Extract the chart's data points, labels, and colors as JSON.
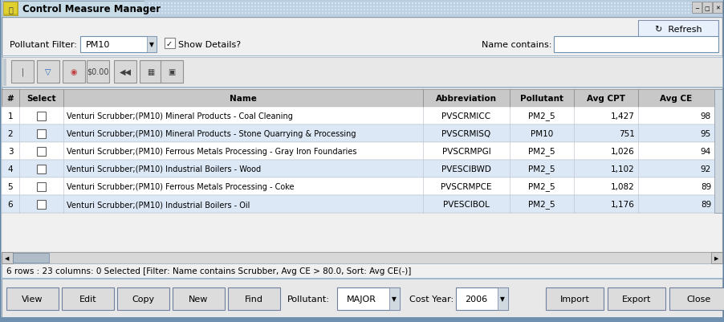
{
  "title": "Control Measure Manager",
  "titlebar_bg": "#d6e4f5",
  "titlebar_stripe": "#a8c4e0",
  "main_bg": "#f0f0f0",
  "panel_bg": "#e8e8e8",
  "toolbar_bg": "#e8e8e8",
  "table_header_bg": "#c8c8c8",
  "row_bg_odd": "#ffffff",
  "row_bg_even": "#dce8f5",
  "row_text": "#000000",
  "border_color": "#7090b0",
  "pollutant_filter_label": "Pollutant Filter:",
  "pollutant_filter_value": "PM10",
  "show_details_label": "Show Details?",
  "name_contains_label": "Name contains:",
  "status_bar": "6 rows : 23 columns: 0 Selected [Filter: Name contains Scrubber, Avg CE > 80.0, Sort: Avg CE(-)]",
  "pollutant_bottom_label": "Pollutant:",
  "pollutant_bottom_value": "MAJOR",
  "cost_year_label": "Cost Year:",
  "cost_year_value": "2006",
  "table_columns": [
    "#",
    "Select",
    "Name",
    "Abbreviation",
    "Pollutant",
    "Avg CPT",
    "Avg CE"
  ],
  "rows": [
    [
      "1",
      "",
      "Venturi Scrubber;(PM10) Mineral Products - Coal Cleaning",
      "PVSCRMICC",
      "PM2_5",
      "1,427",
      "98"
    ],
    [
      "2",
      "",
      "Venturi Scrubber;(PM10) Mineral Products - Stone Quarrying & Processing",
      "PVSCRMISQ",
      "PM10",
      "751",
      "95"
    ],
    [
      "3",
      "",
      "Venturi Scrubber;(PM10) Ferrous Metals Processing - Gray Iron Foundaries",
      "PVSCRMPGI",
      "PM2_5",
      "1,026",
      "94"
    ],
    [
      "4",
      "",
      "Venturi Scrubber;(PM10) Industrial Boilers - Wood",
      "PVESCIBWD",
      "PM2_5",
      "1,102",
      "92"
    ],
    [
      "5",
      "",
      "Venturi Scrubber;(PM10) Ferrous Metals Processing - Coke",
      "PVSCRMPCE",
      "PM2_5",
      "1,082",
      "89"
    ],
    [
      "6",
      "",
      "Venturi Scrubber;(PM10) Industrial Boilers - Oil",
      "PVESCIBOL",
      "PM2_5",
      "1,176",
      "89"
    ]
  ]
}
